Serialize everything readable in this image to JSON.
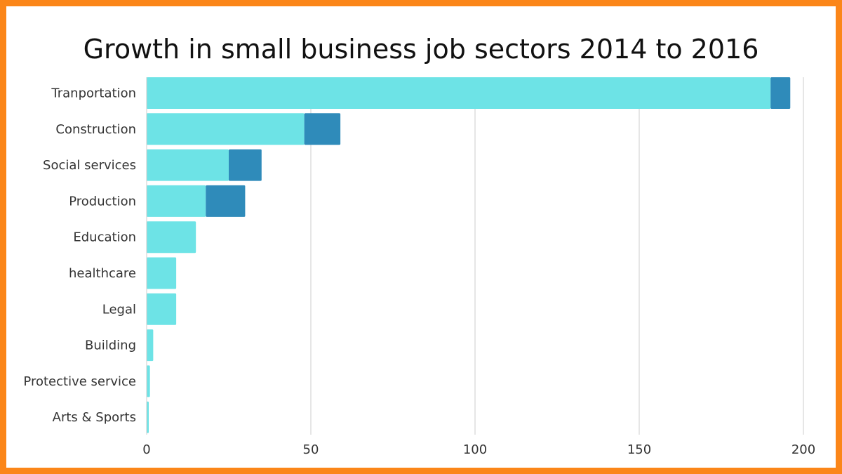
{
  "colors": {
    "frame_border": "#fb8619",
    "background": "#ffffff",
    "bar_primary": "#6de3e6",
    "bar_secondary": "#2f8bba",
    "gridline": "#cccccc",
    "text": "#333333"
  },
  "chart_data": {
    "type": "bar",
    "orientation": "horizontal",
    "stacked": true,
    "title": "Growth in small business job sectors 2014 to 2016",
    "xlabel": "",
    "ylabel": "",
    "categories": [
      "Tranportation",
      "Construction",
      "Social services",
      "Production",
      "Education",
      "healthcare",
      "Legal",
      "Building",
      "Protective service",
      "Arts & Sports"
    ],
    "series": [
      {
        "values": [
          190,
          48,
          25,
          18,
          15,
          9,
          9,
          2,
          1,
          0.5
        ]
      },
      {
        "values": [
          6,
          11,
          10,
          12,
          0,
          0,
          0,
          0,
          0,
          0
        ]
      }
    ],
    "xlim": [
      0,
      200
    ],
    "x_ticks": [
      "0",
      "50",
      "100",
      "150",
      "200"
    ],
    "grid": true,
    "legend": "none"
  }
}
